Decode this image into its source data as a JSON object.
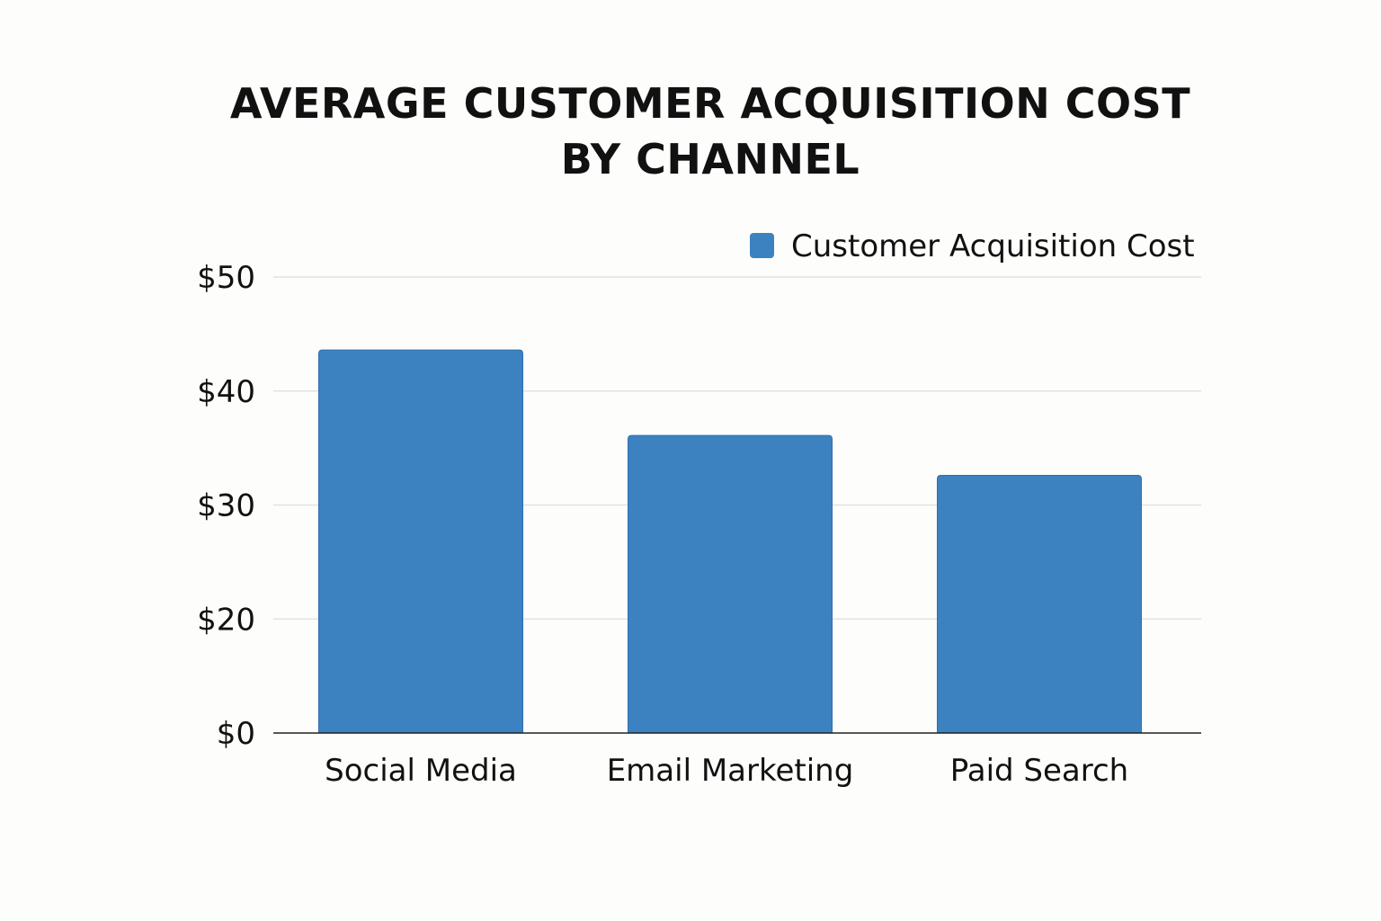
{
  "chart_data": {
    "type": "bar",
    "title": "AVERAGE CUSTOMER ACQUISITION COST BY CHANNEL",
    "categories": [
      "Social Media",
      "Email Marketing",
      "Paid Search"
    ],
    "series": [
      {
        "name": "Customer Acquisition Cost",
        "values": [
          43.6,
          36.1,
          32.6
        ],
        "color": "#3d82c0"
      }
    ],
    "y_ticks": [
      0,
      20,
      30,
      40,
      50
    ],
    "y_tick_labels": [
      "$0",
      "$20",
      "$30",
      "$40",
      "$50"
    ],
    "ylim": [
      0,
      50
    ],
    "xlabel": "",
    "ylabel": "",
    "grid": true,
    "legend_position": "top-right"
  }
}
